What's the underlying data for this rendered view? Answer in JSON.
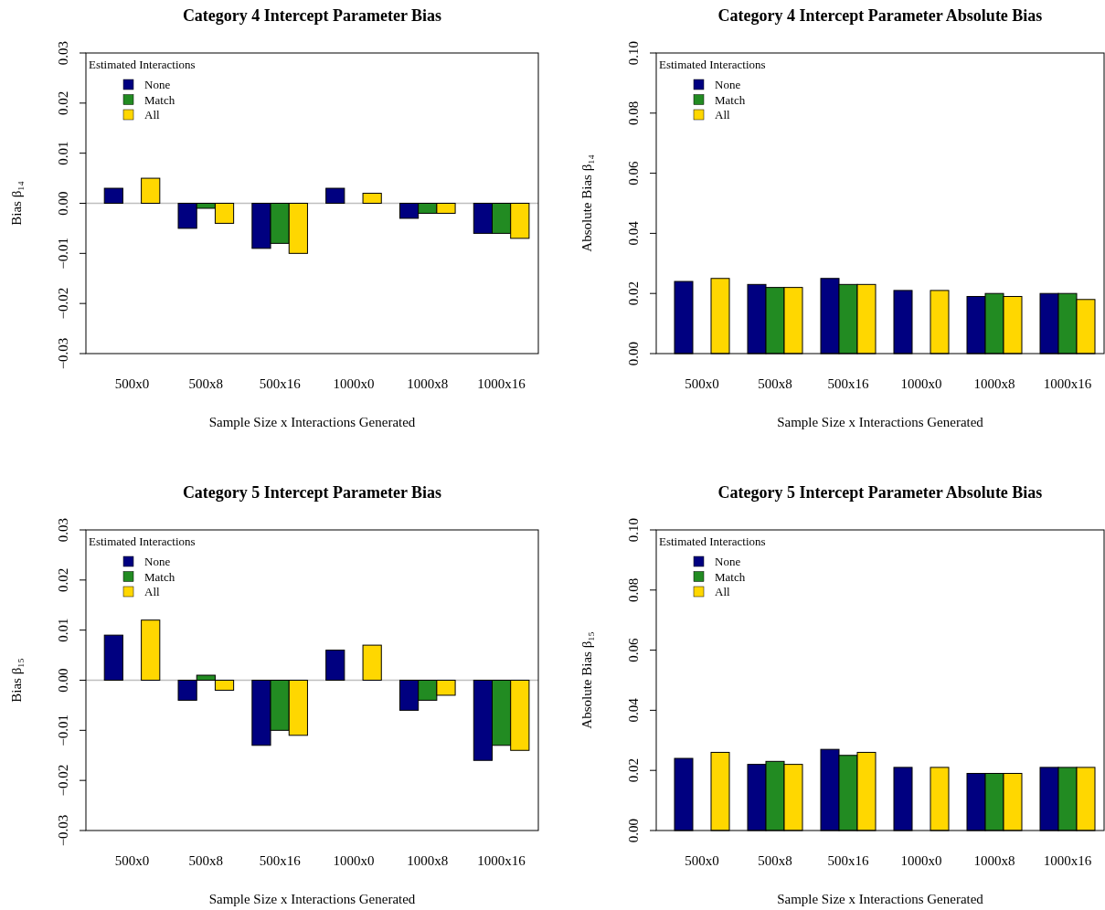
{
  "chart_data": [
    {
      "type": "bar",
      "title": "Category 4 Intercept Parameter Bias",
      "xlabel": "Sample Size x Interactions Generated",
      "ylabel": "Bias β₁₄",
      "legend_title": "Estimated Interactions",
      "legend": "top left",
      "categories": [
        "500x0",
        "500x8",
        "500x16",
        "1000x0",
        "1000x8",
        "1000x16"
      ],
      "ylim": [
        -0.03,
        0.03
      ],
      "yticks": [
        {
          "value": -0.03,
          "label": "−0.03"
        },
        {
          "value": -0.02,
          "label": "−0.02"
        },
        {
          "value": -0.01,
          "label": "−0.01"
        },
        {
          "value": 0,
          "label": "0.00"
        },
        {
          "value": 0.01,
          "label": "0.01"
        },
        {
          "value": 0.02,
          "label": "0.02"
        },
        {
          "value": 0.03,
          "label": "0.03"
        }
      ],
      "ref_lines": [
        {
          "axis": "y",
          "value": 0,
          "color": "#bebebe"
        }
      ],
      "series": [
        {
          "name": "None",
          "color": "#000080",
          "values": [
            0.003,
            -0.005,
            -0.009,
            0.003,
            -0.003,
            -0.006
          ]
        },
        {
          "name": "Match",
          "color": "#228b22",
          "values": [
            null,
            -0.001,
            -0.008,
            null,
            -0.002,
            -0.006
          ]
        },
        {
          "name": "All",
          "color": "#ffd700",
          "values": [
            0.005,
            -0.004,
            -0.01,
            0.002,
            -0.002,
            -0.007
          ]
        }
      ]
    },
    {
      "type": "bar",
      "title": "Category 4 Intercept Parameter Absolute Bias",
      "xlabel": "Sample Size x Interactions Generated",
      "ylabel": "Absolute Bias β₁₄",
      "legend_title": "Estimated Interactions",
      "legend": "top left",
      "categories": [
        "500x0",
        "500x8",
        "500x16",
        "1000x0",
        "1000x8",
        "1000x16"
      ],
      "ylim": [
        0,
        0.1
      ],
      "yticks": [
        {
          "value": 0,
          "label": "0.00"
        },
        {
          "value": 0.02,
          "label": "0.02"
        },
        {
          "value": 0.04,
          "label": "0.04"
        },
        {
          "value": 0.06,
          "label": "0.06"
        },
        {
          "value": 0.08,
          "label": "0.08"
        },
        {
          "value": 0.1,
          "label": "0.10"
        }
      ],
      "series": [
        {
          "name": "None",
          "color": "#000080",
          "values": [
            0.024,
            0.023,
            0.025,
            0.021,
            0.019,
            0.02
          ]
        },
        {
          "name": "Match",
          "color": "#228b22",
          "values": [
            null,
            0.022,
            0.023,
            null,
            0.02,
            0.02
          ]
        },
        {
          "name": "All",
          "color": "#ffd700",
          "values": [
            0.025,
            0.022,
            0.023,
            0.021,
            0.019,
            0.018
          ]
        }
      ]
    },
    {
      "type": "bar",
      "title": "Category 5 Intercept Parameter Bias",
      "xlabel": "Sample Size x Interactions Generated",
      "ylabel": "Bias β₁₅",
      "legend_title": "Estimated Interactions",
      "legend": "top left",
      "categories": [
        "500x0",
        "500x8",
        "500x16",
        "1000x0",
        "1000x8",
        "1000x16"
      ],
      "ylim": [
        -0.03,
        0.03
      ],
      "yticks": [
        {
          "value": -0.03,
          "label": "−0.03"
        },
        {
          "value": -0.02,
          "label": "−0.02"
        },
        {
          "value": -0.01,
          "label": "−0.01"
        },
        {
          "value": 0,
          "label": "0.00"
        },
        {
          "value": 0.01,
          "label": "0.01"
        },
        {
          "value": 0.02,
          "label": "0.02"
        },
        {
          "value": 0.03,
          "label": "0.03"
        }
      ],
      "ref_lines": [
        {
          "axis": "y",
          "value": 0,
          "color": "#bebebe"
        }
      ],
      "series": [
        {
          "name": "None",
          "color": "#000080",
          "values": [
            0.009,
            -0.004,
            -0.013,
            0.006,
            -0.006,
            -0.016
          ]
        },
        {
          "name": "Match",
          "color": "#228b22",
          "values": [
            null,
            0.001,
            -0.01,
            null,
            -0.004,
            -0.013
          ]
        },
        {
          "name": "All",
          "color": "#ffd700",
          "values": [
            0.012,
            -0.002,
            -0.011,
            0.007,
            -0.003,
            -0.014
          ]
        }
      ]
    },
    {
      "type": "bar",
      "title": "Category 5 Intercept Parameter Absolute Bias",
      "xlabel": "Sample Size x Interactions Generated",
      "ylabel": "Absolute Bias β₁₅",
      "legend_title": "Estimated Interactions",
      "legend": "top left",
      "categories": [
        "500x0",
        "500x8",
        "500x16",
        "1000x0",
        "1000x8",
        "1000x16"
      ],
      "ylim": [
        0,
        0.1
      ],
      "yticks": [
        {
          "value": 0,
          "label": "0.00"
        },
        {
          "value": 0.02,
          "label": "0.02"
        },
        {
          "value": 0.04,
          "label": "0.04"
        },
        {
          "value": 0.06,
          "label": "0.06"
        },
        {
          "value": 0.08,
          "label": "0.08"
        },
        {
          "value": 0.1,
          "label": "0.10"
        }
      ],
      "series": [
        {
          "name": "None",
          "color": "#000080",
          "values": [
            0.024,
            0.022,
            0.027,
            0.021,
            0.019,
            0.021
          ]
        },
        {
          "name": "Match",
          "color": "#228b22",
          "values": [
            null,
            0.023,
            0.025,
            null,
            0.019,
            0.021
          ]
        },
        {
          "name": "All",
          "color": "#ffd700",
          "values": [
            0.026,
            0.022,
            0.026,
            0.021,
            0.019,
            0.021
          ]
        }
      ]
    }
  ]
}
